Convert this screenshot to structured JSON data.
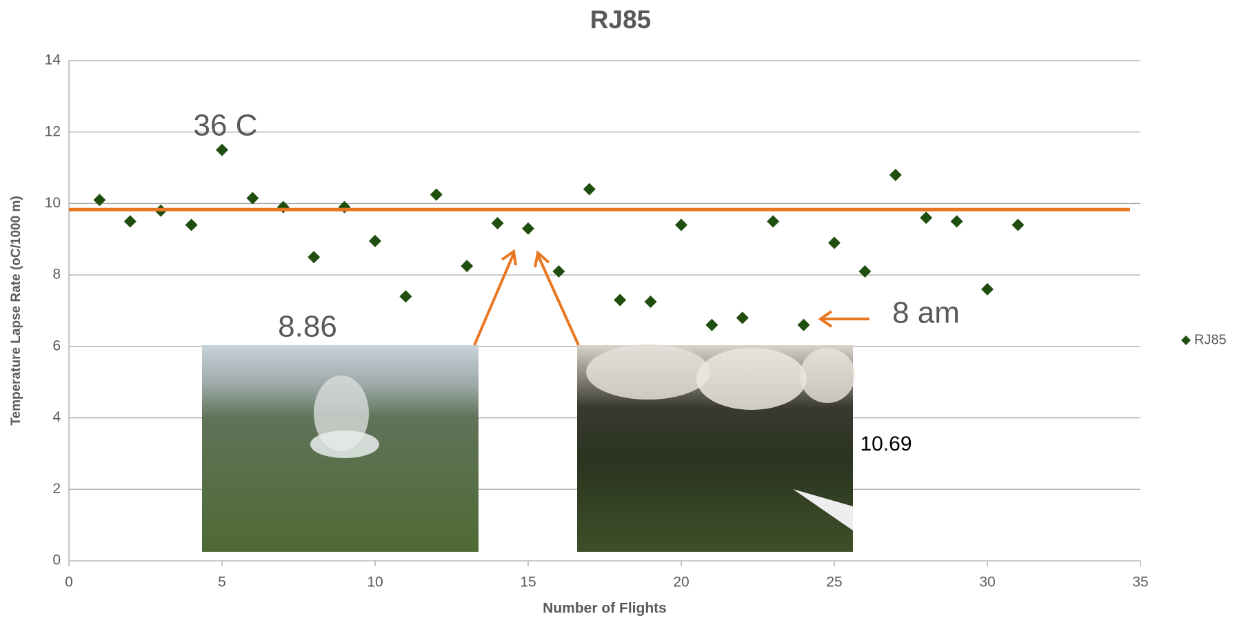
{
  "chart_data": {
    "type": "scatter",
    "title": "RJ85",
    "x_label": "Number of Flights",
    "y_label": "Temperature Lapse Rate (oC/1000 m)",
    "xlim": [
      0,
      35
    ],
    "xticks": [
      0,
      5,
      10,
      15,
      20,
      25,
      30,
      35
    ],
    "ylim": [
      0,
      14
    ],
    "yticks": [
      0,
      2,
      4,
      6,
      8,
      10,
      12,
      14
    ],
    "grid": true,
    "legend": "right",
    "series": [
      {
        "name": "RJ85",
        "color": "#1f4e0f",
        "x": [
          1,
          2,
          3,
          4,
          5,
          6,
          7,
          8,
          9,
          10,
          11,
          12,
          13,
          14,
          15,
          16,
          17,
          18,
          19,
          20,
          21,
          22,
          23,
          24,
          25,
          26,
          27,
          28,
          29,
          30,
          31
        ],
        "values": [
          10.1,
          9.5,
          9.8,
          9.4,
          11.5,
          10.15,
          9.9,
          8.5,
          9.9,
          8.95,
          7.4,
          10.25,
          8.25,
          9.45,
          9.3,
          8.1,
          10.4,
          7.3,
          7.25,
          9.4,
          6.6,
          6.8,
          9.5,
          6.6,
          8.9,
          8.1,
          10.8,
          9.6,
          9.5,
          7.6,
          9.4
        ]
      }
    ],
    "reference_line": {
      "value": 9.83,
      "color": "#e87722"
    },
    "annotations": [
      "36 C",
      "8.86",
      "8 am",
      "10.69"
    ]
  }
}
